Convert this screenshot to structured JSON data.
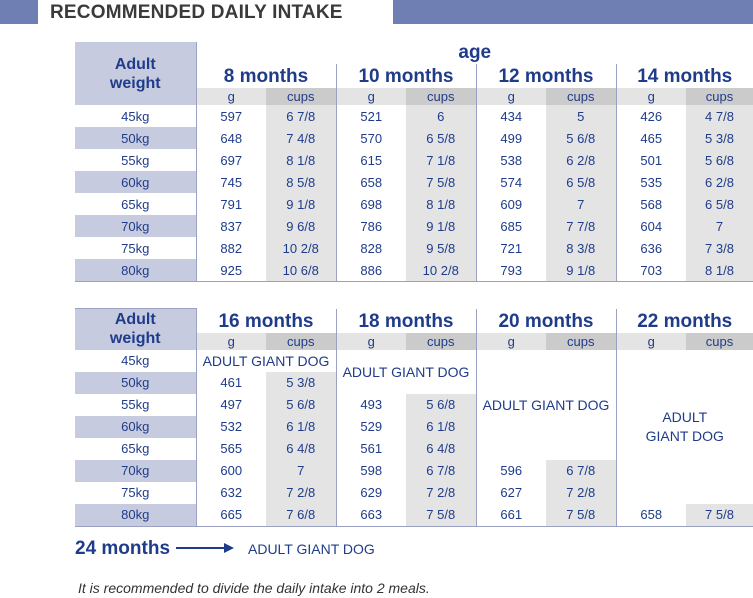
{
  "header": {
    "title": "RECOMMENDED DAILY INTAKE"
  },
  "table1": {
    "weight_label_1": "Adult",
    "weight_label_2": "weight",
    "age_label": "age",
    "months": [
      "8 months",
      "10 months",
      "12 months",
      "14 months"
    ],
    "unit_g": "g",
    "unit_cups": "cups",
    "rows": [
      {
        "w": "45kg",
        "v": [
          "597",
          "6 7/8",
          "521",
          "6",
          "434",
          "5",
          "426",
          "4 7/8"
        ]
      },
      {
        "w": "50kg",
        "v": [
          "648",
          "7 4/8",
          "570",
          "6 5/8",
          "499",
          "5 6/8",
          "465",
          "5 3/8"
        ]
      },
      {
        "w": "55kg",
        "v": [
          "697",
          "8 1/8",
          "615",
          "7 1/8",
          "538",
          "6 2/8",
          "501",
          "5 6/8"
        ]
      },
      {
        "w": "60kg",
        "v": [
          "745",
          "8 5/8",
          "658",
          "7 5/8",
          "574",
          "6 5/8",
          "535",
          "6 2/8"
        ]
      },
      {
        "w": "65kg",
        "v": [
          "791",
          "9 1/8",
          "698",
          "8 1/8",
          "609",
          "7",
          "568",
          "6 5/8"
        ]
      },
      {
        "w": "70kg",
        "v": [
          "837",
          "9 6/8",
          "786",
          "9 1/8",
          "685",
          "7 7/8",
          "604",
          "7"
        ]
      },
      {
        "w": "75kg",
        "v": [
          "882",
          "10 2/8",
          "828",
          "9 5/8",
          "721",
          "8 3/8",
          "636",
          "7 3/8"
        ]
      },
      {
        "w": "80kg",
        "v": [
          "925",
          "10 6/8",
          "886",
          "10 2/8",
          "793",
          "9 1/8",
          "703",
          "8 1/8"
        ]
      }
    ]
  },
  "table2": {
    "weight_label_1": "Adult",
    "weight_label_2": "weight",
    "months": [
      "16 months",
      "18 months",
      "20 months",
      "22 months"
    ],
    "unit_g": "g",
    "unit_cups": "cups",
    "weights": [
      "45kg",
      "50kg",
      "55kg",
      "60kg",
      "65kg",
      "70kg",
      "75kg",
      "80kg"
    ],
    "adult_giant_dog": "ADULT GIANT DOG",
    "adult_giant_dog_l1": "ADULT",
    "adult_giant_dog_l2": "GIANT DOG",
    "m16": [
      [
        "461",
        "5 3/8"
      ],
      [
        "497",
        "5 6/8"
      ],
      [
        "532",
        "6 1/8"
      ],
      [
        "565",
        "6 4/8"
      ],
      [
        "600",
        "7"
      ],
      [
        "632",
        "7 2/8"
      ],
      [
        "665",
        "7 6/8"
      ]
    ],
    "m18": [
      [
        "493",
        "5 6/8"
      ],
      [
        "529",
        "6 1/8"
      ],
      [
        "561",
        "6 4/8"
      ],
      [
        "598",
        "6 7/8"
      ],
      [
        "629",
        "7 2/8"
      ],
      [
        "663",
        "7 5/8"
      ]
    ],
    "m20": [
      [
        "596",
        "6 7/8"
      ],
      [
        "627",
        "7 2/8"
      ],
      [
        "661",
        "7 5/8"
      ]
    ],
    "m22": [
      [
        "658",
        "7 5/8"
      ]
    ]
  },
  "footer": {
    "months_24": "24 months",
    "result": "ADULT GIANT DOG",
    "note": "It is recommended to divide the daily intake into 2 meals."
  }
}
